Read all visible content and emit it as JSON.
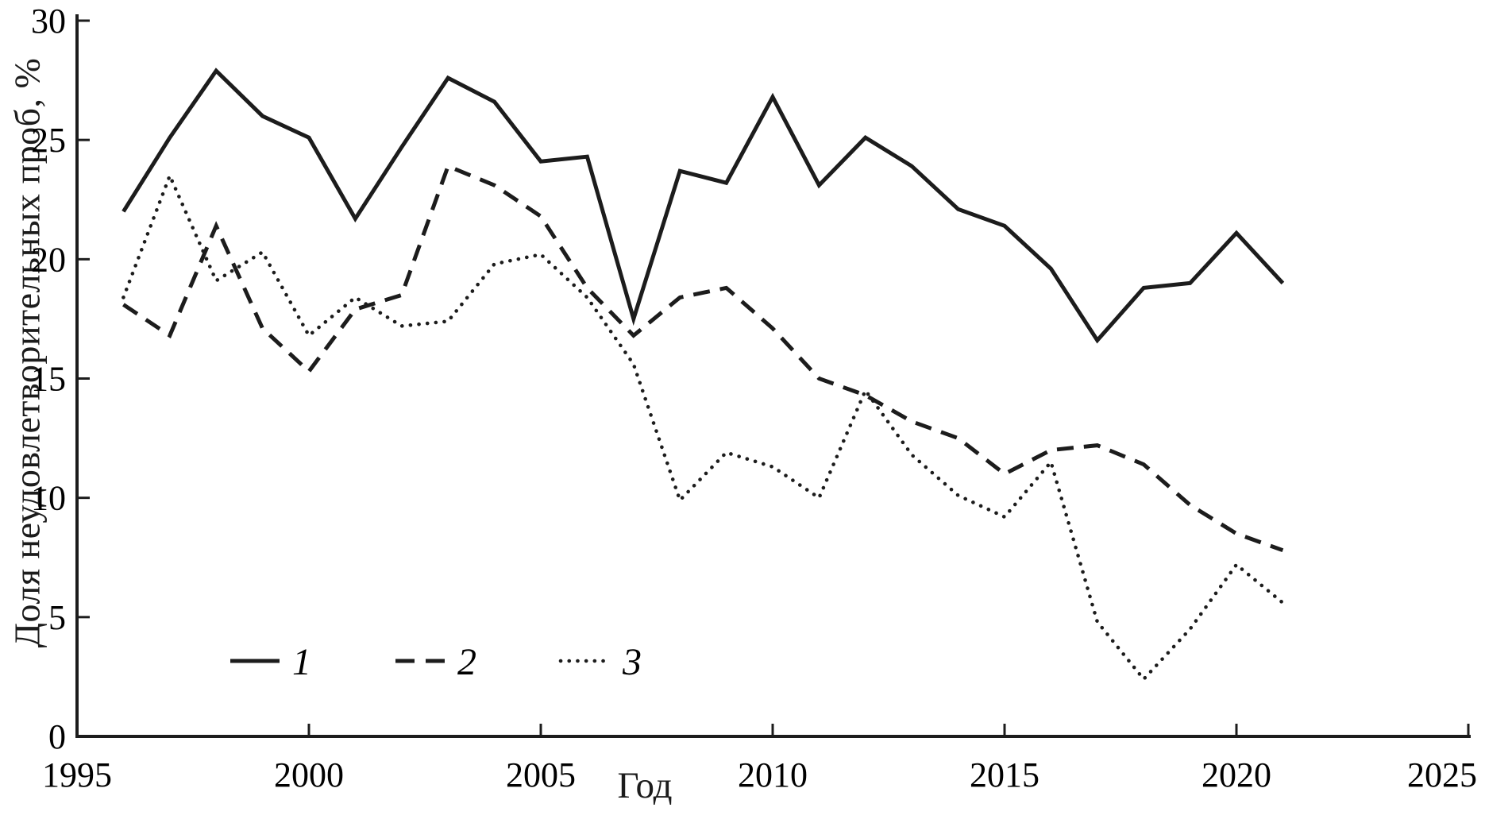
{
  "chart_data": {
    "type": "line",
    "title": "",
    "xlabel": "Год",
    "ylabel": "Доля неудовлетворительных проб, %",
    "xlim": [
      1995,
      2025
    ],
    "ylim": [
      0,
      30
    ],
    "x_ticks": [
      1995,
      2000,
      2005,
      2010,
      2015,
      2020,
      2025
    ],
    "y_ticks": [
      0,
      5,
      10,
      15,
      20,
      25,
      30
    ],
    "grid": false,
    "line_color": "#1c1c1c",
    "legend_position": "inside-bottom-left",
    "x": [
      1996,
      1997,
      1998,
      1999,
      2000,
      2001,
      2002,
      2003,
      2004,
      2005,
      2006,
      2007,
      2008,
      2009,
      2010,
      2011,
      2012,
      2013,
      2014,
      2015,
      2016,
      2017,
      2018,
      2019,
      2020,
      2021
    ],
    "series": [
      {
        "name": "1",
        "style": "solid",
        "values": [
          22.0,
          25.1,
          27.9,
          26.0,
          25.1,
          21.7,
          24.7,
          27.6,
          26.6,
          24.1,
          24.3,
          17.5,
          23.7,
          23.2,
          26.8,
          23.1,
          25.1,
          23.9,
          22.1,
          21.4,
          19.6,
          16.6,
          18.8,
          19.0,
          21.1,
          19.0
        ]
      },
      {
        "name": "2",
        "style": "dashed",
        "values": [
          18.1,
          16.8,
          21.4,
          17.1,
          15.3,
          17.9,
          18.5,
          23.9,
          23.1,
          21.8,
          18.8,
          16.8,
          18.4,
          18.8,
          17.1,
          15.0,
          14.3,
          13.2,
          12.5,
          11.0,
          12.0,
          12.2,
          11.4,
          9.7,
          8.5,
          7.8
        ]
      },
      {
        "name": "3",
        "style": "dotted",
        "values": [
          18.4,
          23.5,
          19.1,
          20.3,
          16.8,
          18.4,
          17.2,
          17.4,
          19.8,
          20.2,
          18.4,
          15.6,
          9.9,
          11.9,
          11.3,
          10.0,
          14.5,
          11.8,
          10.1,
          9.2,
          11.5,
          4.8,
          2.4,
          4.5,
          7.2,
          5.6
        ]
      }
    ],
    "legend": [
      {
        "label": "1",
        "style": "solid"
      },
      {
        "label": "2",
        "style": "dashed"
      },
      {
        "label": "3",
        "style": "dotted"
      }
    ]
  }
}
